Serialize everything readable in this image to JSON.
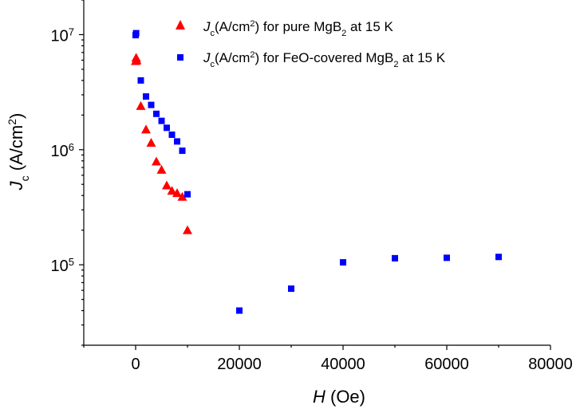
{
  "chart_data": {
    "type": "scatter",
    "x_axis": {
      "scale": "linear",
      "range": [
        -10000,
        80000
      ],
      "ticks": [
        0,
        20000,
        40000,
        60000,
        80000
      ],
      "tick_labels": [
        "0",
        "20000",
        "40000",
        "60000",
        "80000"
      ],
      "minor_step": 10000,
      "label_italic": "H",
      "label_rest": " (Oe)"
    },
    "y_axis": {
      "scale": "log",
      "range": [
        20000,
        20000000
      ],
      "ticks": [
        100000,
        1000000,
        10000000
      ],
      "tick_labels": [
        {
          "base": "10",
          "exp": "5"
        },
        {
          "base": "10",
          "exp": "6"
        },
        {
          "base": "10",
          "exp": "7"
        }
      ],
      "label_italic": "J",
      "label_sub": "c",
      "label_rest": " (A/cm",
      "label_sup": "2",
      "label_end": ")"
    },
    "grid": false,
    "legend_position": "top-right",
    "series": [
      {
        "name": "Jc(A/cm2) for pure MgB2 at 15 K",
        "legend": {
          "italic": "J",
          "sub": "c",
          "t1": "(A/cm",
          "sup": "2",
          "t2": ") for pure MgB",
          "sub2": "2",
          "t3": " at 15 K"
        },
        "marker": "triangle",
        "color": "#ff0000",
        "x": [
          0,
          100,
          200,
          1000,
          2000,
          3000,
          4000,
          5000,
          6000,
          7000,
          8000,
          9000,
          10000
        ],
        "y": [
          5900000,
          6300000,
          6000000,
          2400000,
          1500000,
          1150000,
          790000,
          670000,
          490000,
          440000,
          420000,
          390000,
          200000
        ]
      },
      {
        "name": "Jc(A/cm2) for FeO-covered MgB2 at 15 K",
        "legend": {
          "italic": "J",
          "sub": "c",
          "t1": "(A/cm",
          "sup": "2",
          "t2": ") for FeO-covered MgB",
          "sub2": "2",
          "t3": " at 15 K"
        },
        "marker": "square",
        "color": "#0000ff",
        "x": [
          0,
          100,
          1000,
          2000,
          3000,
          4000,
          5000,
          6000,
          7000,
          8000,
          9000,
          10000,
          20000,
          30000,
          40000,
          50000,
          60000,
          70000
        ],
        "y": [
          9900000,
          10300000,
          4000000,
          2900000,
          2450000,
          2050000,
          1780000,
          1550000,
          1350000,
          1180000,
          980000,
          410000,
          40000,
          62000,
          105000,
          114000,
          115000,
          117000
        ]
      }
    ]
  }
}
